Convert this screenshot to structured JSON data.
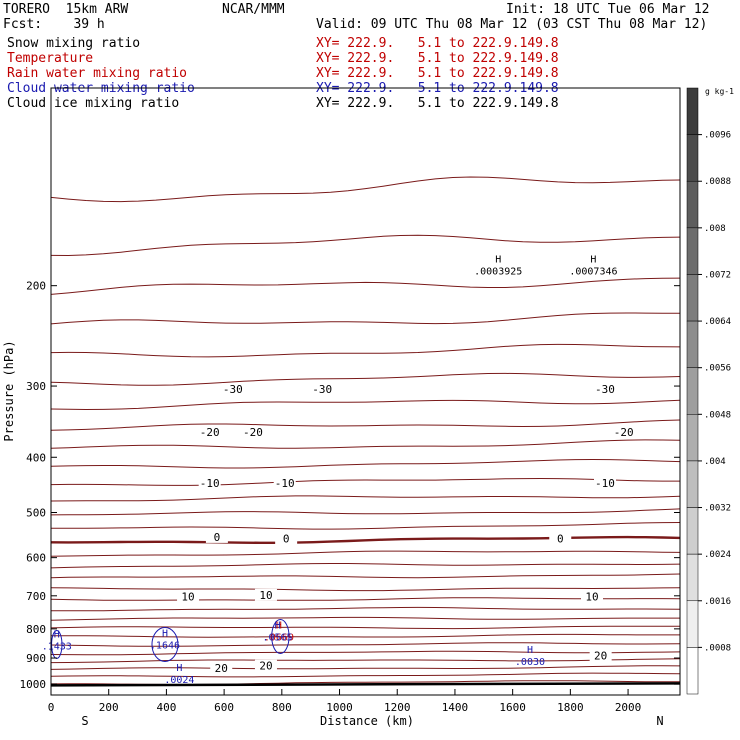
{
  "header": {
    "model": "TORERO  15km ARW",
    "org": "NCAR/MMM",
    "init": "Init: 18 UTC Tue 06 Mar 12",
    "fcst": "Fcst:    39 h",
    "valid": "Valid: 09 UTC Thu 08 Mar 12 (03 CST Thu 08 Mar 12)"
  },
  "fields": [
    {
      "name": "Snow mixing ratio",
      "xy": "XY= 222.9.   5.1 to 222.9.149.8",
      "color": "#000000"
    },
    {
      "name": "Temperature",
      "xy": "XY= 222.9.   5.1 to 222.9.149.8",
      "color": "#c00000"
    },
    {
      "name": "Rain water mixing ratio",
      "xy": "XY= 222.9.   5.1 to 222.9.149.8",
      "color": "#c00000"
    },
    {
      "name": "Cloud water mixing ratio",
      "xy": "XY= 222.9.   5.1 to 222.9.149.8",
      "color": "#1a1ab0"
    },
    {
      "name": "Cloud ice mixing ratio",
      "xy": "XY= 222.9.   5.1 to 222.9.149.8",
      "color": "#000000"
    }
  ],
  "colors": {
    "temperature": "#7a1a1a",
    "cloud_water": "#1a1ab0",
    "text": "#000000"
  },
  "chart_data": {
    "type": "line",
    "xlabel": "Distance (km)",
    "ylabel": "Pressure (hPa)",
    "xlim": [
      0,
      2180
    ],
    "ylim": [
      1045,
      90
    ],
    "yscale": "log",
    "x_ticks": [
      0,
      200,
      400,
      600,
      800,
      1000,
      1200,
      1400,
      1600,
      1800,
      2000
    ],
    "y_ticks": [
      200,
      300,
      400,
      500,
      600,
      700,
      800,
      900,
      1000
    ],
    "endpoints": {
      "left": "S",
      "right": "N"
    },
    "surface_pressure": 1005,
    "temperature_contours": {
      "interval": 5,
      "unit": "C",
      "labels": [
        {
          "text": "-30",
          "x": 630,
          "p": 305
        },
        {
          "text": "-30",
          "x": 940,
          "p": 305
        },
        {
          "text": "-30",
          "x": 1920,
          "p": 305
        },
        {
          "text": "-20",
          "x": 550,
          "p": 363
        },
        {
          "text": "-20",
          "x": 700,
          "p": 363
        },
        {
          "text": "-20",
          "x": 1985,
          "p": 363
        },
        {
          "text": "-10",
          "x": 550,
          "p": 446
        },
        {
          "text": "-10",
          "x": 810,
          "p": 446
        },
        {
          "text": "-10",
          "x": 1920,
          "p": 446
        },
        {
          "text": "0",
          "x": 575,
          "p": 554
        },
        {
          "text": "0",
          "x": 815,
          "p": 558
        },
        {
          "text": "0",
          "x": 1765,
          "p": 558
        },
        {
          "text": "10",
          "x": 475,
          "p": 705
        },
        {
          "text": "10",
          "x": 745,
          "p": 700
        },
        {
          "text": "10",
          "x": 1875,
          "p": 705
        },
        {
          "text": "20",
          "x": 590,
          "p": 940
        },
        {
          "text": "20",
          "x": 745,
          "p": 932
        },
        {
          "text": "20",
          "x": 1905,
          "p": 895
        }
      ]
    },
    "highs": [
      {
        "label": ".0003925",
        "x": 1550,
        "p": 188,
        "group": "cloud_ice"
      },
      {
        "label": ".0007346",
        "x": 1880,
        "p": 188,
        "group": "cloud_ice"
      },
      {
        "label": ".1433",
        "x": 20,
        "p": 855,
        "group": "cloud_water"
      },
      {
        "label": ".1646",
        "x": 395,
        "p": 852,
        "group": "cloud_water"
      },
      {
        "label": ".0669",
        "x": 790,
        "p": 825,
        "group": "rain"
      },
      {
        "label": ".0565",
        "x": 785,
        "p": 825,
        "group": "cloud_water"
      },
      {
        "label": ".0030",
        "x": 1660,
        "p": 910,
        "group": "cloud_water"
      },
      {
        "label": ".0024",
        "x": 445,
        "p": 980,
        "group": "cloud_water"
      }
    ],
    "colorbar": {
      "unit": "g kg-1",
      "labels": [
        ".0096",
        ".0088",
        ".008",
        ".0072",
        ".0064",
        ".0056",
        ".0048",
        ".004",
        ".0032",
        ".0024",
        ".0016",
        ".0008"
      ]
    }
  }
}
